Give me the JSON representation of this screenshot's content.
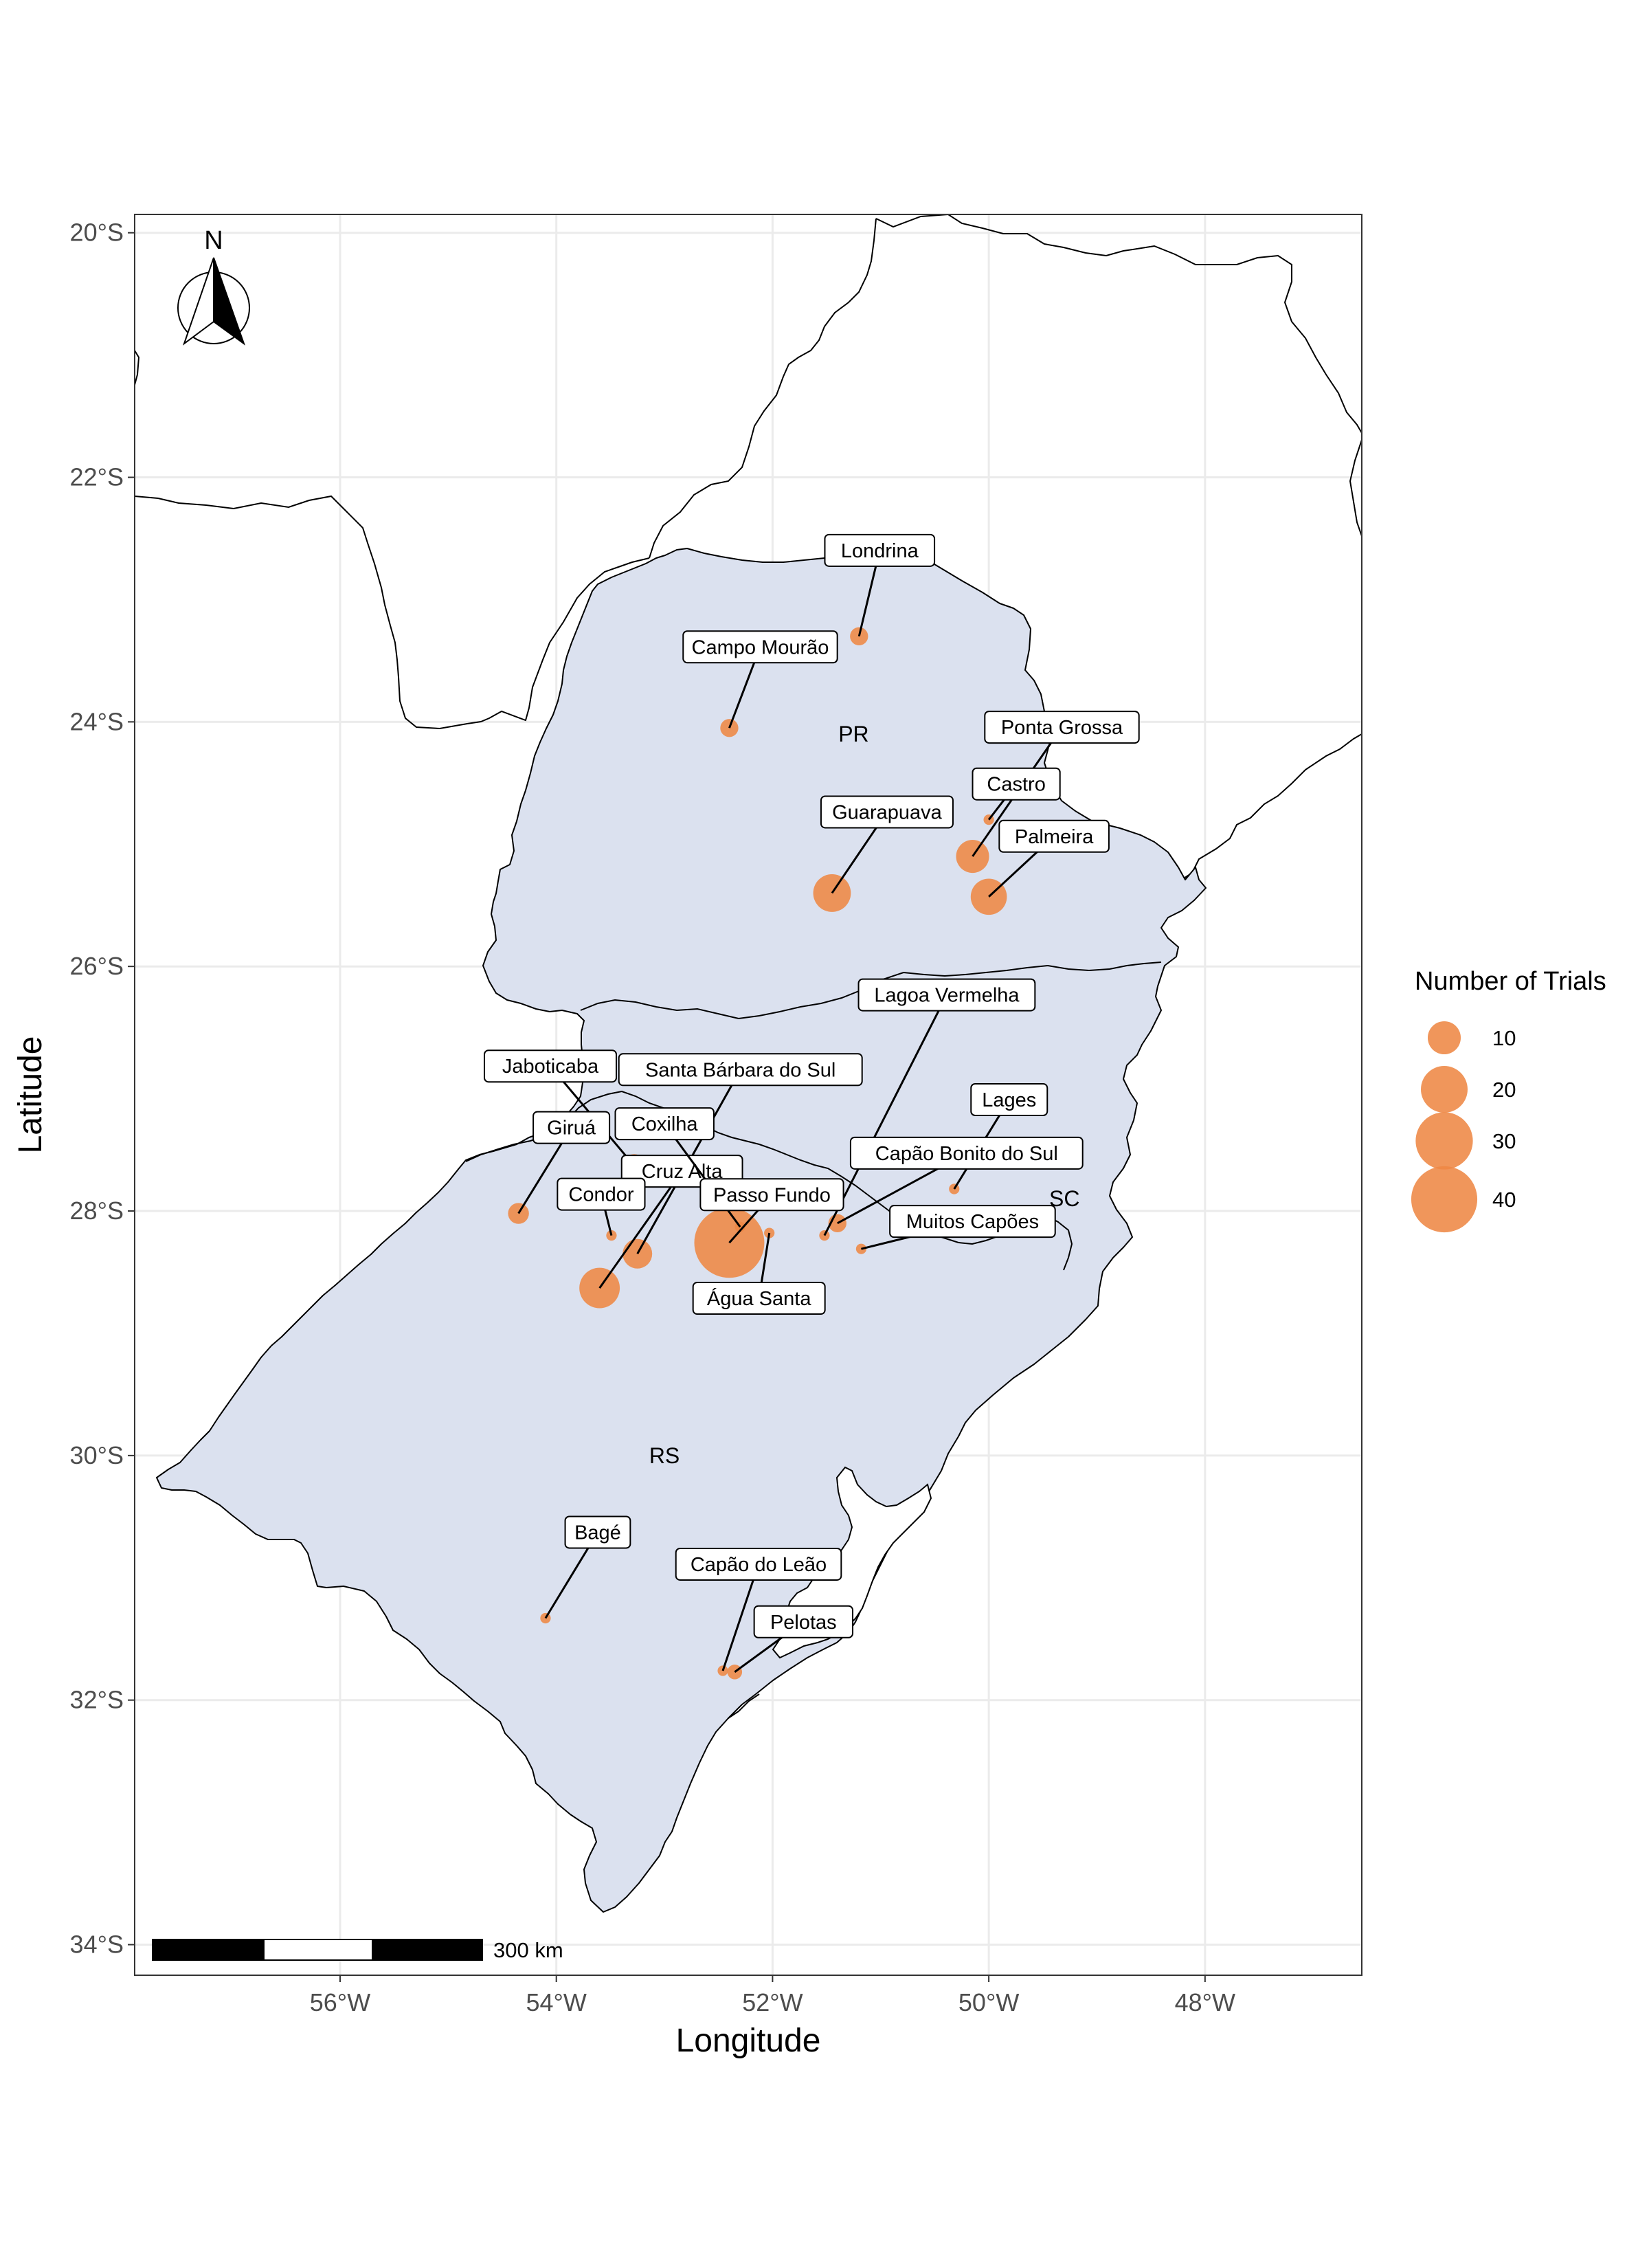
{
  "chart_data": {
    "type": "map",
    "title": "",
    "xlabel": "Longitude",
    "ylabel": "Latitude",
    "xlim": [
      -57.9,
      -46.55
    ],
    "ylim": [
      -34.25,
      -19.85
    ],
    "x_ticks": [
      {
        "value": -56,
        "label": "56°W"
      },
      {
        "value": -54,
        "label": "54°W"
      },
      {
        "value": -52,
        "label": "52°W"
      },
      {
        "value": -50,
        "label": "50°W"
      },
      {
        "value": -48,
        "label": "48°W"
      }
    ],
    "y_ticks": [
      {
        "value": -20,
        "label": "20°S"
      },
      {
        "value": -22,
        "label": "22°S"
      },
      {
        "value": -24,
        "label": "24°S"
      },
      {
        "value": -26,
        "label": "26°S"
      },
      {
        "value": -28,
        "label": "28°S"
      },
      {
        "value": -30,
        "label": "30°S"
      },
      {
        "value": -32,
        "label": "32°S"
      },
      {
        "value": -34,
        "label": "34°S"
      }
    ],
    "grid": true,
    "region_fill": "#dbe1ef",
    "point_color": "#ee8844",
    "region_labels": [
      {
        "text": "PR",
        "lon": -51.25,
        "lat": -24.1
      },
      {
        "text": "SC",
        "lon": -49.3,
        "lat": -27.9
      },
      {
        "text": "RS",
        "lon": -53.0,
        "lat": -30.0
      }
    ],
    "sites": [
      {
        "name": "Londrina",
        "lon": -51.2,
        "lat": -23.3,
        "trials": 3
      },
      {
        "name": "Campo Mourão",
        "lon": -52.4,
        "lat": -24.05,
        "trials": 3
      },
      {
        "name": "Ponta Grossa",
        "lon": -50.15,
        "lat": -25.1,
        "trials": 10
      },
      {
        "name": "Castro",
        "lon": -50.0,
        "lat": -24.8,
        "trials": 1
      },
      {
        "name": "Guarapuava",
        "lon": -51.45,
        "lat": -25.4,
        "trials": 13
      },
      {
        "name": "Palmeira",
        "lon": -50.0,
        "lat": -25.43,
        "trials": 12
      },
      {
        "name": "Lagoa Vermelha",
        "lon": -51.52,
        "lat": -28.2,
        "trials": 1
      },
      {
        "name": "Lages",
        "lon": -50.32,
        "lat": -27.82,
        "trials": 1
      },
      {
        "name": "Jaboticaba",
        "lon": -53.28,
        "lat": -27.63,
        "trials": 5
      },
      {
        "name": "Santa Bárbara do Sul",
        "lon": -53.25,
        "lat": -28.35,
        "trials": 8
      },
      {
        "name": "Giruá",
        "lon": -54.35,
        "lat": -28.02,
        "trials": 4
      },
      {
        "name": "Cruz Alta",
        "lon": -53.6,
        "lat": -28.63,
        "trials": 15
      },
      {
        "name": "Coxilha",
        "lon": -52.3,
        "lat": -28.13,
        "trials": 1
      },
      {
        "name": "Capão Bonito do Sul",
        "lon": -51.4,
        "lat": -28.1,
        "trials": 3
      },
      {
        "name": "Condor",
        "lon": -53.49,
        "lat": -28.2,
        "trials": 1
      },
      {
        "name": "Passo Fundo",
        "lon": -52.4,
        "lat": -28.26,
        "trials": 45
      },
      {
        "name": "Muitos Capões",
        "lon": -51.18,
        "lat": -28.31,
        "trials": 1
      },
      {
        "name": "Água Santa",
        "lon": -52.03,
        "lat": -28.18,
        "trials": 1
      },
      {
        "name": "Bagé",
        "lon": -54.1,
        "lat": -31.33,
        "trials": 1
      },
      {
        "name": "Capão do Leão",
        "lon": -52.46,
        "lat": -31.76,
        "trials": 1
      },
      {
        "name": "Pelotas",
        "lon": -52.35,
        "lat": -31.77,
        "trials": 2
      }
    ],
    "legend": {
      "title": "Number of Trials",
      "position": "right",
      "entries": [
        {
          "value": 10,
          "label": "10"
        },
        {
          "value": 20,
          "label": "20"
        },
        {
          "value": 30,
          "label": "30"
        },
        {
          "value": 40,
          "label": "40"
        }
      ]
    },
    "scale_bar": {
      "label": "300 km"
    },
    "north_arrow": {
      "label": "N"
    }
  }
}
